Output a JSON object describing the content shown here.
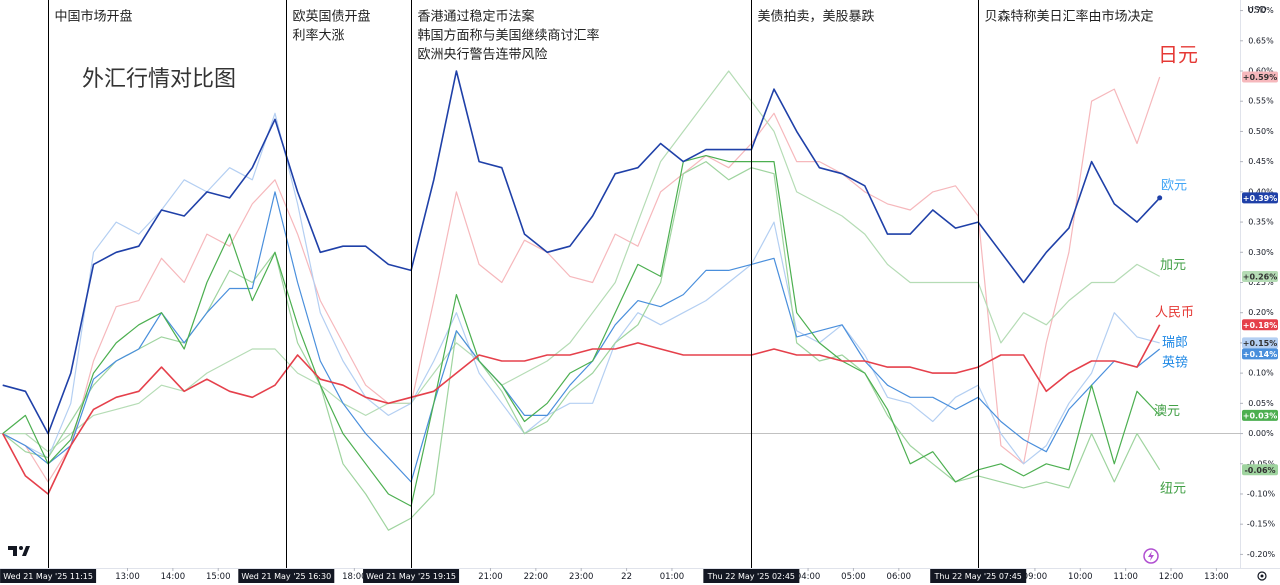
{
  "chart_data": {
    "type": "line",
    "title": "外汇行情对比图",
    "currency": "USD",
    "x": [
      10.25,
      10.75,
      11.25,
      11.75,
      12.25,
      12.75,
      13.25,
      13.75,
      14.25,
      14.75,
      15.25,
      15.75,
      16.25,
      16.75,
      17.25,
      17.75,
      18.25,
      18.75,
      19.25,
      19.75,
      20.25,
      20.75,
      21.25,
      21.75,
      22.25,
      22.75,
      23.25,
      23.75,
      24.25,
      24.75,
      25.25,
      25.75,
      26.25,
      26.75,
      27.25,
      27.75,
      28.25,
      28.75,
      29.25,
      29.75,
      30.25,
      30.75,
      31.25,
      31.75,
      32.25,
      32.75,
      33.25,
      33.75,
      34.25,
      34.75,
      35.25,
      35.75
    ],
    "xlim": [
      10.19,
      37.52
    ],
    "xticks": [
      {
        "value": 11.25,
        "label": "Wed 21 May '25   11:15",
        "highlight": true
      },
      {
        "value": 13,
        "label": "13:00"
      },
      {
        "value": 14,
        "label": "14:00"
      },
      {
        "value": 15,
        "label": "15:00"
      },
      {
        "value": 16.5,
        "label": "Wed 21 May '25   16:30",
        "highlight": true
      },
      {
        "value": 18,
        "label": "18:00"
      },
      {
        "value": 19.25,
        "label": "Wed 21 May '25   19:15",
        "highlight": true
      },
      {
        "value": 21,
        "label": "21:00"
      },
      {
        "value": 22,
        "label": "22:00"
      },
      {
        "value": 23,
        "label": "23:00"
      },
      {
        "value": 24,
        "label": "22"
      },
      {
        "value": 25,
        "label": "01:00"
      },
      {
        "value": 26.75,
        "label": "Thu 22 May '25   02:45",
        "highlight": true
      },
      {
        "value": 28,
        "label": "04:00"
      },
      {
        "value": 29,
        "label": "05:00"
      },
      {
        "value": 30,
        "label": "06:00"
      },
      {
        "value": 31.75,
        "label": "Thu 22 May '25   07:45",
        "highlight": true
      },
      {
        "value": 33,
        "label": "09:00"
      },
      {
        "value": 34,
        "label": "10:00"
      },
      {
        "value": 35,
        "label": "11:00"
      },
      {
        "value": 36,
        "label": "12:00"
      },
      {
        "value": 37,
        "label": "13:00"
      }
    ],
    "ylim": [
      -0.2225,
      0.7175
    ],
    "yticks": [
      {
        "value": 0.7,
        "label": "0.70%"
      },
      {
        "value": 0.65,
        "label": "0.65%"
      },
      {
        "value": 0.6,
        "label": "0.60%"
      },
      {
        "value": 0.55,
        "label": "0.55%"
      },
      {
        "value": 0.5,
        "label": "0.50%"
      },
      {
        "value": 0.45,
        "label": "0.45%"
      },
      {
        "value": 0.4,
        "label": "0.40%"
      },
      {
        "value": 0.35,
        "label": "0.35%"
      },
      {
        "value": 0.3,
        "label": "0.30%"
      },
      {
        "value": 0.25,
        "label": "0.25%"
      },
      {
        "value": 0.2,
        "label": "0.20%"
      },
      {
        "value": 0.15,
        "label": "0.15%"
      },
      {
        "value": 0.1,
        "label": "0.10%"
      },
      {
        "value": 0.05,
        "label": "0.05%"
      },
      {
        "value": 0,
        "label": "0.00%"
      },
      {
        "value": -0.05,
        "label": "-0.05%"
      },
      {
        "value": -0.1,
        "label": "-0.10%"
      },
      {
        "value": -0.15,
        "label": "-0.15%"
      },
      {
        "value": -0.2,
        "label": "-0.20%"
      }
    ],
    "zero_line": true,
    "annotations": [
      {
        "x": 11.25,
        "lines": [
          "中国市场开盘"
        ]
      },
      {
        "x": 16.5,
        "lines": [
          "欧英国债开盘",
          "利率大涨"
        ]
      },
      {
        "x": 19.25,
        "lines": [
          "香港通过稳定币法案",
          "韩国方面称与美国继续商讨汇率",
          "欧洲央行警告连带风险"
        ]
      },
      {
        "x": 26.75,
        "lines": [
          "美债拍卖，美股暴跌"
        ]
      },
      {
        "x": 31.75,
        "lines": [
          "贝森特称美日汇率由市场决定"
        ]
      }
    ],
    "series": [
      {
        "name": "日元",
        "color": "#f6b8bc",
        "label_color": "#e53935",
        "end_label": "+0.59%",
        "values": [
          0.0,
          -0.02,
          -0.08,
          -0.02,
          0.12,
          0.21,
          0.22,
          0.29,
          0.25,
          0.33,
          0.31,
          0.38,
          0.42,
          0.33,
          0.22,
          0.15,
          0.08,
          0.05,
          0.05,
          0.22,
          0.4,
          0.28,
          0.25,
          0.32,
          0.3,
          0.26,
          0.25,
          0.33,
          0.31,
          0.4,
          0.43,
          0.46,
          0.44,
          0.48,
          0.53,
          0.45,
          0.45,
          0.43,
          0.4,
          0.38,
          0.37,
          0.4,
          0.41,
          0.36,
          -0.02,
          -0.05,
          0.15,
          0.3,
          0.55,
          0.57,
          0.48,
          0.59
        ]
      },
      {
        "name": "加元",
        "color": "#b5dcb5",
        "label_color": "#43a047",
        "end_label": "+0.26%",
        "values": [
          0.0,
          0.0,
          -0.03,
          0.0,
          0.03,
          0.04,
          0.05,
          0.08,
          0.07,
          0.1,
          0.12,
          0.14,
          0.14,
          0.1,
          0.08,
          0.05,
          0.03,
          0.05,
          0.05,
          0.1,
          0.15,
          0.12,
          0.08,
          0.1,
          0.12,
          0.15,
          0.2,
          0.25,
          0.35,
          0.45,
          0.5,
          0.55,
          0.6,
          0.55,
          0.5,
          0.4,
          0.38,
          0.36,
          0.33,
          0.28,
          0.25,
          0.25,
          0.25,
          0.25,
          0.15,
          0.2,
          0.18,
          0.22,
          0.25,
          0.25,
          0.28,
          0.26
        ]
      },
      {
        "name": "瑞郎",
        "color": "#b4cff2",
        "label_color": "#1e88e5",
        "end_label": "+0.15%",
        "values": [
          0.0,
          -0.02,
          -0.04,
          0.05,
          0.3,
          0.35,
          0.33,
          0.37,
          0.42,
          0.4,
          0.44,
          0.42,
          0.53,
          0.38,
          0.2,
          0.12,
          0.06,
          0.03,
          0.05,
          0.12,
          0.2,
          0.1,
          0.05,
          0.0,
          0.03,
          0.05,
          0.05,
          0.15,
          0.2,
          0.18,
          0.2,
          0.22,
          0.25,
          0.28,
          0.35,
          0.17,
          0.15,
          0.18,
          0.13,
          0.06,
          0.05,
          0.02,
          0.06,
          0.08,
          0.0,
          -0.05,
          -0.02,
          0.05,
          0.1,
          0.2,
          0.16,
          0.15
        ]
      },
      {
        "name": "纽元",
        "color": "#9fd49f",
        "label_color": "#43a047",
        "end_label": "-0.06%",
        "values": [
          0.0,
          -0.03,
          -0.04,
          0.02,
          0.08,
          0.12,
          0.14,
          0.16,
          0.15,
          0.2,
          0.27,
          0.25,
          0.3,
          0.15,
          0.08,
          -0.05,
          -0.1,
          -0.16,
          -0.14,
          -0.1,
          0.17,
          0.12,
          0.07,
          0.0,
          0.02,
          0.07,
          0.1,
          0.15,
          0.18,
          0.25,
          0.43,
          0.45,
          0.42,
          0.44,
          0.43,
          0.15,
          0.12,
          0.13,
          0.1,
          0.03,
          -0.02,
          -0.05,
          -0.08,
          -0.07,
          -0.08,
          -0.09,
          -0.08,
          -0.09,
          0.0,
          -0.08,
          0.0,
          -0.06
        ]
      },
      {
        "name": "英镑",
        "color": "#4a8fdc",
        "label_color": "#1e88e5",
        "end_label": "+0.14%",
        "values": [
          0.0,
          -0.02,
          -0.05,
          -0.02,
          0.09,
          0.12,
          0.14,
          0.2,
          0.15,
          0.2,
          0.24,
          0.24,
          0.4,
          0.25,
          0.12,
          0.05,
          0.0,
          -0.04,
          -0.08,
          0.05,
          0.17,
          0.12,
          0.08,
          0.03,
          0.03,
          0.08,
          0.12,
          0.18,
          0.22,
          0.21,
          0.23,
          0.27,
          0.27,
          0.28,
          0.29,
          0.16,
          0.17,
          0.18,
          0.12,
          0.08,
          0.06,
          0.06,
          0.04,
          0.06,
          0.02,
          -0.01,
          -0.03,
          0.04,
          0.08,
          0.12,
          0.11,
          0.14
        ]
      },
      {
        "name": "澳元",
        "color": "#4caf50",
        "label_color": "#43a047",
        "end_label": "+0.03%",
        "values": [
          0.0,
          0.03,
          -0.05,
          -0.01,
          0.1,
          0.15,
          0.18,
          0.2,
          0.14,
          0.25,
          0.33,
          0.22,
          0.3,
          0.18,
          0.08,
          0.0,
          -0.05,
          -0.1,
          -0.12,
          0.05,
          0.23,
          0.12,
          0.08,
          0.02,
          0.05,
          0.1,
          0.12,
          0.2,
          0.28,
          0.26,
          0.45,
          0.46,
          0.45,
          0.45,
          0.45,
          0.2,
          0.15,
          0.12,
          0.1,
          0.04,
          -0.05,
          -0.03,
          -0.08,
          -0.06,
          -0.05,
          -0.07,
          -0.05,
          -0.06,
          0.08,
          -0.05,
          0.07,
          0.03
        ]
      },
      {
        "name": "人民币",
        "color": "#e5404b",
        "label_color": "#e53935",
        "end_label": "+0.18%",
        "values": [
          0.0,
          -0.07,
          -0.1,
          -0.02,
          0.04,
          0.06,
          0.07,
          0.11,
          0.07,
          0.09,
          0.07,
          0.06,
          0.08,
          0.13,
          0.09,
          0.08,
          0.06,
          0.05,
          0.06,
          0.07,
          0.1,
          0.13,
          0.12,
          0.12,
          0.13,
          0.13,
          0.14,
          0.14,
          0.15,
          0.14,
          0.13,
          0.13,
          0.13,
          0.13,
          0.14,
          0.13,
          0.13,
          0.12,
          0.12,
          0.11,
          0.11,
          0.1,
          0.1,
          0.11,
          0.13,
          0.13,
          0.07,
          0.1,
          0.12,
          0.12,
          0.11,
          0.18
        ]
      },
      {
        "name": "欧元",
        "color": "#1f40a8",
        "label_color": "#42a5f5",
        "end_label": "+0.39%",
        "values": [
          0.08,
          0.07,
          0.0,
          0.1,
          0.28,
          0.3,
          0.31,
          0.37,
          0.36,
          0.4,
          0.39,
          0.44,
          0.52,
          0.4,
          0.3,
          0.31,
          0.31,
          0.28,
          0.27,
          0.42,
          0.6,
          0.45,
          0.44,
          0.33,
          0.3,
          0.31,
          0.36,
          0.43,
          0.44,
          0.48,
          0.45,
          0.47,
          0.47,
          0.47,
          0.57,
          0.5,
          0.44,
          0.43,
          0.41,
          0.33,
          0.33,
          0.37,
          0.34,
          0.35,
          0.3,
          0.25,
          0.3,
          0.34,
          0.45,
          0.38,
          0.35,
          0.39
        ]
      }
    ]
  }
}
